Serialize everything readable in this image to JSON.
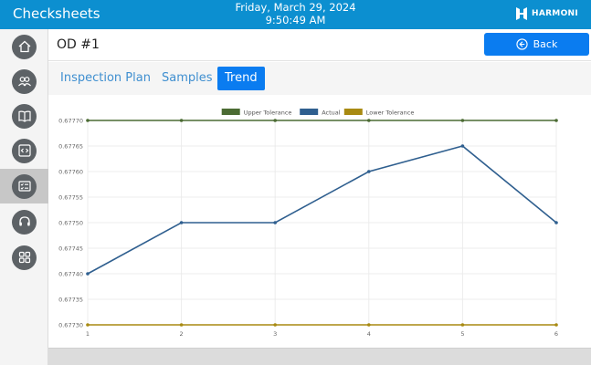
{
  "app": {
    "title": "Checksheets",
    "date": "Friday, March 29, 2024",
    "time": "9:50:49 AM",
    "brand": "HARMONI"
  },
  "sidebar": {
    "items": [
      {
        "icon": "home-icon",
        "active": false
      },
      {
        "icon": "users-icon",
        "active": false
      },
      {
        "icon": "book-icon",
        "active": false
      },
      {
        "icon": "code-icon",
        "active": false
      },
      {
        "icon": "checklist-icon",
        "active": true
      },
      {
        "icon": "headset-icon",
        "active": false
      },
      {
        "icon": "apps-grid-icon",
        "active": false
      }
    ]
  },
  "page": {
    "title": "OD #1",
    "back_label": "Back"
  },
  "tabs": [
    {
      "label": "Inspection Plan",
      "active": false
    },
    {
      "label": "Samples",
      "active": false
    },
    {
      "label": "Trend",
      "active": true
    }
  ],
  "chart_data": {
    "type": "line",
    "x": [
      1,
      2,
      3,
      4,
      5,
      6
    ],
    "ylim": [
      0.6773,
      0.6777
    ],
    "yticks": [
      "0.67730",
      "0.67735",
      "0.67740",
      "0.67745",
      "0.67750",
      "0.67755",
      "0.67760",
      "0.67765",
      "0.67770"
    ],
    "grid": true,
    "legend_position": "top-center",
    "series": [
      {
        "name": "Upper Tolerance",
        "color": "#4b6b33",
        "values": [
          0.6777,
          0.6777,
          0.6777,
          0.6777,
          0.6777,
          0.6777
        ]
      },
      {
        "name": "Actual",
        "color": "#2f5f8f",
        "values": [
          0.6774,
          0.6775,
          0.6775,
          0.6776,
          0.67765,
          0.6775
        ]
      },
      {
        "name": "Lower Tolerance",
        "color": "#a88a12",
        "values": [
          0.6773,
          0.6773,
          0.6773,
          0.6773,
          0.6773,
          0.6773
        ]
      }
    ]
  }
}
